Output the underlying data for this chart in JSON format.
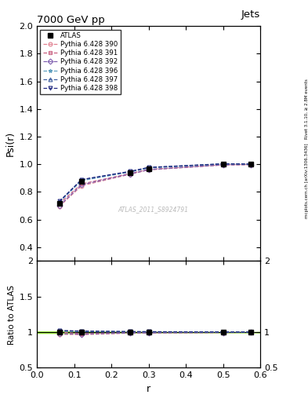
{
  "title": "7000 GeV pp",
  "title_right": "Jets",
  "ylabel_main": "Psi(r)",
  "ylabel_ratio": "Ratio to ATLAS",
  "xlabel": "r",
  "watermark": "ATLAS_2011_S8924791",
  "right_label": "mcplots.cern.ch [arXiv:1306.3436]",
  "right_label2": "Rivet 3.1.10, ≥ 2.8M events",
  "xlim": [
    0,
    0.6
  ],
  "ylim_main": [
    0.3,
    2.0
  ],
  "ylim_ratio": [
    0.5,
    2.0
  ],
  "x_data": [
    0.06,
    0.12,
    0.25,
    0.3,
    0.5,
    0.575
  ],
  "atlas_y": [
    0.715,
    0.875,
    0.94,
    0.97,
    1.0,
    1.0
  ],
  "atlas_yerr": [
    0.008,
    0.008,
    0.005,
    0.004,
    0.003,
    0.003
  ],
  "series": [
    {
      "label": "Pythia 6.428 390",
      "color": "#e08090",
      "marker": "o",
      "y": [
        0.695,
        0.845,
        0.928,
        0.96,
        0.995,
        0.998
      ]
    },
    {
      "label": "Pythia 6.428 391",
      "color": "#c86080",
      "marker": "s",
      "y": [
        0.715,
        0.858,
        0.933,
        0.963,
        0.997,
        0.999
      ]
    },
    {
      "label": "Pythia 6.428 392",
      "color": "#8060b0",
      "marker": "D",
      "y": [
        0.7,
        0.852,
        0.93,
        0.961,
        0.996,
        0.998
      ]
    },
    {
      "label": "Pythia 6.428 396",
      "color": "#60a0c0",
      "marker": "*",
      "y": [
        0.725,
        0.882,
        0.944,
        0.973,
        1.002,
        1.001
      ]
    },
    {
      "label": "Pythia 6.428 397",
      "color": "#4060a0",
      "marker": "^",
      "y": [
        0.73,
        0.888,
        0.947,
        0.976,
        1.003,
        1.002
      ]
    },
    {
      "label": "Pythia 6.428 398",
      "color": "#202880",
      "marker": "v",
      "y": [
        0.732,
        0.89,
        0.949,
        0.978,
        1.004,
        1.002
      ]
    }
  ]
}
